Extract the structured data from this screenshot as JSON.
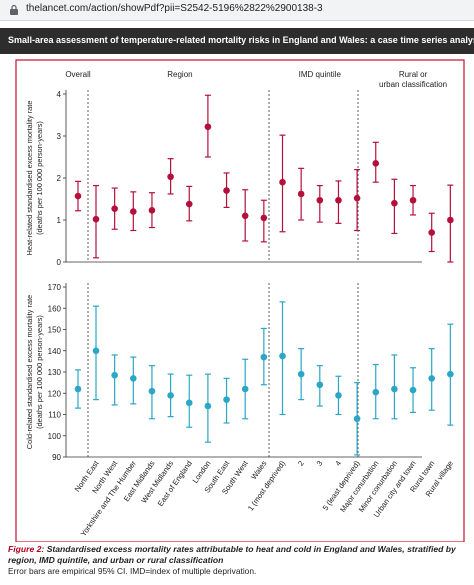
{
  "browser": {
    "url": "thelancet.com/action/showPdf?pii=S2542-5196%2822%2900138-3"
  },
  "figure": {
    "header_title": "Small-area assessment of temperature-related mortality risks in England and Wales: a case time series analysis",
    "caption_label": "Figure 2:",
    "caption_text": "Standardised excess mortality rates attributable to heat and cold in England and Wales, stratified by region, IMD quintile, and urban or rural classification",
    "caption_note": "Error bars are empirical 95% CI. IMD=index of multiple deprivation."
  },
  "chart_data": {
    "type": "scatter",
    "categories": [
      "North East",
      "North West",
      "Yorkshire and The Humber",
      "East Midlands",
      "West Midlands",
      "East of England",
      "London",
      "South East",
      "South West",
      "Wales",
      "1 (most deprived)",
      "2",
      "3",
      "4",
      "5 (least deprived)",
      "Major conurbation",
      "Minor conurbation",
      "Urban city and town",
      "Rural town",
      "Rural village"
    ],
    "overall": {
      "label": "Overall"
    },
    "groups": [
      {
        "name": "Region",
        "start": 0,
        "end": 9
      },
      {
        "name": "IMD quintile",
        "start": 10,
        "end": 14
      },
      {
        "name": "Rural or urban classification",
        "start": 15,
        "end": 19
      }
    ],
    "panels": [
      {
        "name": "heat",
        "ylabel": "Heat-related standardised excess mortality rate (deaths per 100 000 person-years)",
        "ylim": [
          0,
          4
        ],
        "yticks": [
          0,
          1,
          2,
          3,
          4
        ],
        "color": "#b5103c",
        "overall": {
          "value": 1.57,
          "lo": 1.22,
          "hi": 1.92
        },
        "values": [
          1.02,
          1.27,
          1.2,
          1.23,
          2.03,
          1.38,
          3.22,
          1.7,
          1.1,
          1.05,
          1.9,
          1.62,
          1.47,
          1.47,
          1.52,
          2.35,
          1.4,
          1.47,
          0.7,
          1.0
        ],
        "lower": [
          0.1,
          0.78,
          0.75,
          0.82,
          1.62,
          0.98,
          2.5,
          1.3,
          0.5,
          0.48,
          0.72,
          1.0,
          0.95,
          0.92,
          0.75,
          1.9,
          0.68,
          1.12,
          0.25,
          0.0
        ],
        "upper": [
          1.82,
          1.76,
          1.67,
          1.65,
          2.46,
          1.8,
          3.97,
          2.12,
          1.72,
          1.47,
          3.02,
          2.23,
          1.82,
          1.93,
          2.2,
          2.85,
          1.97,
          1.82,
          1.16,
          1.83
        ]
      },
      {
        "name": "cold",
        "ylabel": "Cold-related standardised excess mortality rate (deaths per 100 000 person-years)",
        "ylim": [
          90,
          170
        ],
        "yticks": [
          90,
          100,
          110,
          120,
          130,
          140,
          150,
          160,
          170
        ],
        "color": "#2ba6c6",
        "overall": {
          "value": 122,
          "lo": 113,
          "hi": 131
        },
        "values": [
          140,
          128.5,
          127,
          121,
          119,
          115.5,
          114,
          117,
          122,
          137,
          137.5,
          129,
          124,
          119,
          108,
          120.5,
          122,
          121.5,
          127,
          129
        ],
        "lower": [
          117,
          114.5,
          115,
          108,
          109,
          104,
          97,
          106,
          108,
          124,
          110,
          117,
          114,
          110,
          91,
          108,
          108,
          111,
          112,
          105
        ],
        "upper": [
          161,
          138,
          137,
          133,
          129,
          128.5,
          129,
          127,
          136,
          150.5,
          163,
          141,
          133,
          128,
          125,
          133.5,
          138,
          132,
          141,
          152.5
        ]
      }
    ]
  }
}
